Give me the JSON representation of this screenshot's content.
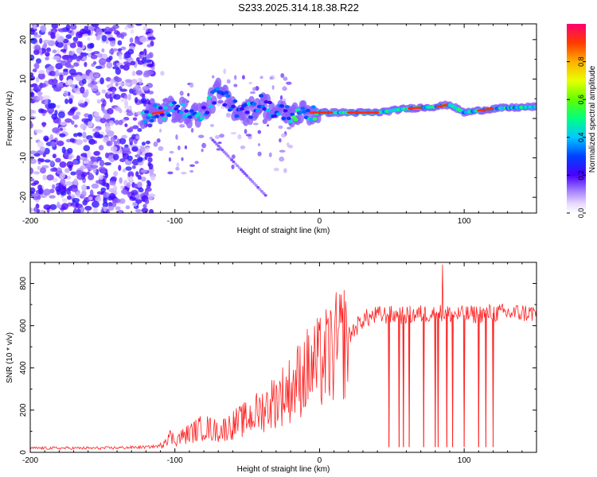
{
  "figure_title": "S233.2025.314.18.38.R22",
  "colors": {
    "snr_line": "#ff2222",
    "frame": "#000000"
  },
  "chart_data": [
    {
      "type": "heatmap",
      "title": "S233.2025.314.18.38.R22",
      "xlabel": "Height of straight line (km)",
      "ylabel": "Frequency (Hz)",
      "xlim": [
        -200,
        150
      ],
      "ylim": [
        -24,
        24
      ],
      "xticks": [
        -200,
        -100,
        0,
        100
      ],
      "yticks": [
        -20,
        -10,
        0,
        10,
        20
      ],
      "colorbar": {
        "label": "Normalized spectral amplitude",
        "range": [
          0,
          1
        ],
        "ticks": [
          0.0,
          0.2,
          0.4,
          0.6,
          0.8
        ]
      },
      "ridge": [
        {
          "x": -120,
          "y": 1.0
        },
        {
          "x": -110,
          "y": 1.5
        },
        {
          "x": -100,
          "y": 3.0
        },
        {
          "x": -90,
          "y": 1.0
        },
        {
          "x": -80,
          "y": 1.5
        },
        {
          "x": -70,
          "y": 7.0
        },
        {
          "x": -60,
          "y": 3.0
        },
        {
          "x": -50,
          "y": 1.5
        },
        {
          "x": -40,
          "y": 4.0
        },
        {
          "x": -30,
          "y": 1.5
        },
        {
          "x": -20,
          "y": 1.0
        },
        {
          "x": -10,
          "y": 1.5
        },
        {
          "x": 0,
          "y": 1.5
        },
        {
          "x": 20,
          "y": 1.5
        },
        {
          "x": 40,
          "y": 1.5
        },
        {
          "x": 60,
          "y": 2.5
        },
        {
          "x": 80,
          "y": 3.0
        },
        {
          "x": 90,
          "y": 3.5
        },
        {
          "x": 100,
          "y": 1.5
        },
        {
          "x": 120,
          "y": 2.5
        },
        {
          "x": 150,
          "y": 3.0
        }
      ],
      "noise_region": {
        "x_range": [
          -200,
          -115
        ],
        "amplitude": "low (0.05-0.3)"
      }
    },
    {
      "type": "line",
      "xlabel": "Height of straight line (km)",
      "ylabel": "SNR (10 * v/v)",
      "xlim": [
        -200,
        150
      ],
      "ylim": [
        0,
        900
      ],
      "xticks": [
        -200,
        -100,
        0,
        100
      ],
      "yticks": [
        0,
        200,
        400,
        600,
        800
      ],
      "series": [
        {
          "name": "SNR",
          "x": [
            -200,
            -150,
            -120,
            -110,
            -105,
            -100,
            -90,
            -80,
            -70,
            -60,
            -50,
            -40,
            -30,
            -20,
            -10,
            0,
            10,
            20,
            30,
            40,
            60,
            80,
            100,
            120,
            150
          ],
          "y": [
            20,
            20,
            25,
            30,
            80,
            60,
            90,
            120,
            100,
            130,
            160,
            200,
            250,
            300,
            380,
            420,
            480,
            550,
            630,
            650,
            650,
            660,
            650,
            660,
            660
          ]
        }
      ],
      "dropouts_x": [
        48,
        55,
        58,
        62,
        72,
        80,
        82,
        88,
        92,
        100,
        110,
        115,
        120
      ],
      "spike": {
        "x": 85,
        "y": 890
      }
    }
  ]
}
